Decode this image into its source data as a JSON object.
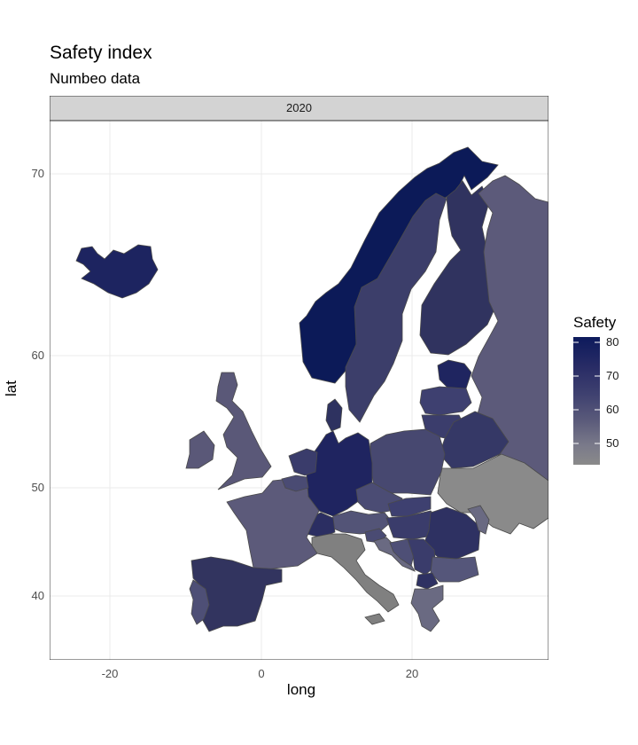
{
  "title": "Safety index",
  "subtitle": "Numbeo data",
  "facet": "2020",
  "xlabel": "long",
  "ylabel": "lat",
  "x_ticks": [
    "-20",
    "0",
    "20"
  ],
  "y_ticks": [
    "70",
    "60",
    "50",
    "40"
  ],
  "legend": {
    "title": "Safety",
    "ticks": [
      "80",
      "70",
      "60",
      "50"
    ]
  },
  "colors": {
    "high": "#0d1a5c",
    "low": "#8a8a8a",
    "grid": "#ebebeb",
    "strip": "#d9d9d9",
    "border": "#333333"
  }
}
